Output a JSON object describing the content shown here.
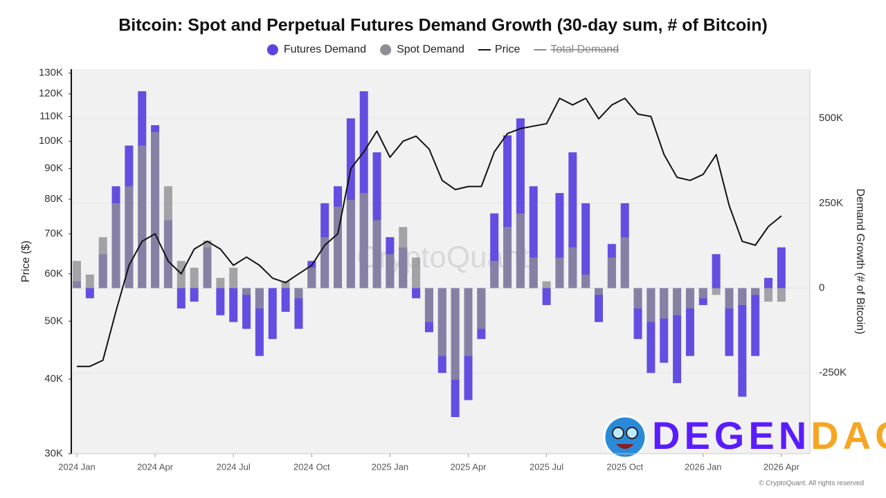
{
  "chart_data": {
    "type": "bar-line",
    "title": "Bitcoin: Spot and Perpetual Futures Demand Growth (30-day sum, # of Bitcoin)",
    "ylabel": "Price ($)",
    "y2label": "Demand Growth (# of Bitcoin)",
    "ylog": true,
    "grid": true,
    "categories": [
      "2024 Jan",
      null,
      null,
      null,
      null,
      null,
      "2024 Apr",
      null,
      null,
      null,
      null,
      null,
      "2024 Jul",
      null,
      null,
      null,
      null,
      null,
      "2024 Oct",
      null,
      null,
      null,
      null,
      null,
      "2025 Jan",
      null,
      null,
      null,
      null,
      null,
      "2025 Apr",
      null,
      null,
      null,
      null,
      null,
      "2025 Jul",
      null,
      null,
      null,
      null,
      null,
      "2025 Oct",
      null,
      null,
      null,
      null,
      null,
      "2026 Jan",
      null,
      null,
      null,
      null,
      null,
      "2026 Apr"
    ],
    "ylim": [
      30000,
      132000
    ],
    "yticks": [
      {
        "value": 30000,
        "label": "30K"
      },
      {
        "value": 40000,
        "label": "40K"
      },
      {
        "value": 50000,
        "label": "50K"
      },
      {
        "value": 60000,
        "label": "60K"
      },
      {
        "value": 70000,
        "label": "70K"
      },
      {
        "value": 80000,
        "label": "80K"
      },
      {
        "value": 90000,
        "label": "90K"
      },
      {
        "value": 100000,
        "label": "100K"
      },
      {
        "value": 110000,
        "label": "110K"
      },
      {
        "value": 120000,
        "label": "120K"
      },
      {
        "value": 130000,
        "label": "130K"
      }
    ],
    "y2lim": [
      -488000,
      645000
    ],
    "y2ticks": [
      {
        "value": -250000,
        "label": "-250K"
      },
      0,
      {
        "value": 250000,
        "label": "250K"
      },
      {
        "value": 500000,
        "label": "500K"
      }
    ],
    "series": [
      {
        "name": "Futures Demand",
        "kind": "bar",
        "axis": "y2",
        "color": "#5b45e0",
        "values": [
          20000,
          -30000,
          100000,
          300000,
          420000,
          580000,
          480000,
          200000,
          -60000,
          -40000,
          120000,
          -80000,
          -100000,
          -120000,
          -200000,
          -150000,
          -70000,
          -120000,
          80000,
          250000,
          300000,
          500000,
          580000,
          400000,
          150000,
          120000,
          -30000,
          -130000,
          -250000,
          -380000,
          -330000,
          -150000,
          220000,
          450000,
          500000,
          300000,
          -50000,
          280000,
          400000,
          250000,
          -100000,
          130000,
          250000,
          -150000,
          -250000,
          -220000,
          -280000,
          -200000,
          -50000,
          100000,
          -200000,
          -320000,
          -200000,
          30000,
          120000
        ]
      },
      {
        "name": "Spot Demand",
        "kind": "bar",
        "axis": "y2",
        "color": "#8e8e95",
        "values": [
          80000,
          40000,
          150000,
          250000,
          300000,
          420000,
          460000,
          300000,
          80000,
          60000,
          140000,
          30000,
          60000,
          -20000,
          -60000,
          0,
          20000,
          -30000,
          60000,
          150000,
          240000,
          260000,
          280000,
          200000,
          100000,
          180000,
          90000,
          -100000,
          -200000,
          -270000,
          -200000,
          -120000,
          80000,
          180000,
          220000,
          90000,
          20000,
          90000,
          120000,
          40000,
          -20000,
          90000,
          150000,
          -60000,
          -100000,
          -90000,
          -80000,
          -60000,
          -30000,
          -20000,
          -60000,
          -50000,
          -20000,
          -40000,
          -40000
        ]
      },
      {
        "name": "Price",
        "kind": "line",
        "color": "#111111",
        "values": [
          42000,
          42000,
          43000,
          52000,
          62000,
          68000,
          70000,
          63000,
          60000,
          66000,
          68000,
          66000,
          62000,
          64000,
          62000,
          59000,
          58000,
          60000,
          62000,
          67000,
          70000,
          90000,
          96000,
          104000,
          94000,
          100000,
          102000,
          97000,
          86000,
          83000,
          84000,
          84000,
          96000,
          103000,
          105000,
          106000,
          107000,
          118000,
          115000,
          118000,
          109000,
          115000,
          118000,
          111000,
          110000,
          95000,
          87000,
          86000,
          88000,
          95000,
          78000,
          68000,
          67000,
          72000,
          75000
        ]
      },
      {
        "name": "Total Demand",
        "kind": "line",
        "color": "#888888",
        "hidden": true
      }
    ]
  },
  "watermark": "CryptoQuant",
  "logo": {
    "part1": "DEGEN",
    "part2": "DAO!"
  },
  "copyright": "© CryptoQuant. All rights reserved"
}
